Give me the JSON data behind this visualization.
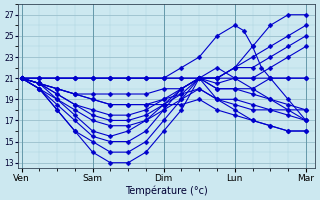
{
  "xlabel": "Température (°c)",
  "background_color": "#cce8f0",
  "line_color": "#0000cc",
  "marker": "D",
  "markersize": 2.5,
  "linewidth": 0.8,
  "ylim": [
    12.5,
    28
  ],
  "yticks": [
    13,
    15,
    17,
    19,
    21,
    23,
    25,
    27
  ],
  "days": [
    "Ven",
    "Sam",
    "Dim",
    "Lun",
    "Mar"
  ],
  "day_tick_positions": [
    0,
    4,
    8,
    12,
    16
  ],
  "trajectories": [
    {
      "x": [
        0,
        1,
        2,
        3,
        4,
        5,
        6,
        7,
        8,
        9,
        10,
        11,
        12,
        13,
        14,
        15,
        16
      ],
      "y": [
        21,
        20,
        18,
        16,
        14,
        13,
        13,
        14,
        16,
        18,
        21,
        21,
        22,
        24,
        26,
        27,
        27
      ]
    },
    {
      "x": [
        0,
        1,
        2,
        3,
        4,
        5,
        6,
        7,
        8,
        9,
        10,
        11,
        12,
        13,
        14,
        15,
        16
      ],
      "y": [
        21,
        20,
        18,
        16,
        15,
        14,
        14,
        15,
        17,
        19,
        21,
        21,
        22,
        23,
        24,
        25,
        26
      ]
    },
    {
      "x": [
        0,
        1,
        2,
        3,
        4,
        5,
        6,
        7,
        8,
        9,
        10,
        11,
        12,
        13,
        14,
        15,
        16
      ],
      "y": [
        21,
        20,
        18.5,
        17,
        15.5,
        15,
        15,
        16,
        18,
        20,
        21,
        21,
        22,
        22,
        23,
        24,
        25
      ]
    },
    {
      "x": [
        0,
        1,
        2,
        3,
        4,
        5,
        6,
        7,
        8,
        9,
        10,
        11,
        12,
        13,
        14,
        15,
        16
      ],
      "y": [
        21,
        20.5,
        19,
        17.5,
        16,
        15.5,
        16,
        17,
        18.5,
        20,
        21,
        20.5,
        21,
        21,
        22,
        23,
        24
      ]
    },
    {
      "x": [
        0,
        1,
        2,
        3,
        4,
        5,
        6,
        7,
        8,
        9,
        10,
        11,
        12,
        13,
        14,
        15,
        16
      ],
      "y": [
        21,
        20.5,
        19.5,
        18.5,
        17.5,
        17,
        17,
        17.5,
        18.5,
        19.5,
        21,
        20,
        20,
        20,
        21,
        21,
        21
      ]
    },
    {
      "x": [
        0,
        1,
        2,
        3,
        4,
        5,
        6,
        7,
        8,
        9,
        10,
        11,
        12,
        13,
        14,
        15,
        16
      ],
      "y": [
        21,
        20.5,
        19.5,
        18.5,
        18,
        17.5,
        17.5,
        18,
        19,
        20,
        21,
        20,
        20,
        19.5,
        19,
        18.5,
        18
      ]
    },
    {
      "x": [
        0,
        1,
        2,
        3,
        4,
        5,
        6,
        7,
        8,
        9,
        10,
        11,
        12,
        13,
        14,
        15,
        16
      ],
      "y": [
        21,
        20.5,
        20,
        19.5,
        19,
        18.5,
        18.5,
        18.5,
        19,
        19.5,
        20,
        19,
        19,
        18.5,
        18,
        17.5,
        17
      ]
    },
    {
      "x": [
        0,
        1,
        2,
        3,
        4,
        5,
        6,
        7,
        8,
        9,
        10,
        11,
        12,
        13,
        14,
        15,
        16
      ],
      "y": [
        21,
        20.5,
        20,
        19.5,
        19,
        18.5,
        18.5,
        18.5,
        18.5,
        18.5,
        19,
        18,
        17.5,
        17,
        16.5,
        16,
        16
      ]
    },
    {
      "x": [
        0,
        1,
        2,
        3,
        4,
        5,
        6,
        7,
        8,
        9,
        10,
        11,
        12,
        12.5,
        13,
        13.5,
        14,
        15,
        16
      ],
      "y": [
        21,
        21,
        21,
        21,
        21,
        21,
        21,
        21,
        21,
        22,
        23,
        25,
        26,
        25.5,
        24,
        22,
        21,
        19,
        17
      ]
    },
    {
      "x": [
        0,
        1,
        2,
        3,
        4,
        5,
        6,
        7,
        8,
        9,
        10,
        11,
        12,
        13,
        14,
        15,
        16
      ],
      "y": [
        21,
        21,
        21,
        21,
        21,
        21,
        21,
        21,
        21,
        21,
        21,
        19,
        18,
        17,
        16.5,
        16,
        16
      ]
    },
    {
      "x": [
        0,
        1,
        2,
        3,
        4,
        5,
        6,
        7,
        8,
        9,
        10,
        11,
        12,
        13,
        14,
        15,
        16
      ],
      "y": [
        21,
        21,
        21,
        21,
        21,
        21,
        21,
        21,
        21,
        21,
        21,
        21,
        21,
        20,
        19,
        18,
        17
      ]
    },
    {
      "x": [
        0,
        1,
        2,
        3,
        4,
        5,
        6,
        7,
        8,
        9,
        10,
        11,
        12,
        13,
        14,
        15,
        16
      ],
      "y": [
        21,
        20.5,
        20,
        19.5,
        19.5,
        19.5,
        19.5,
        19.5,
        20,
        20,
        21,
        22,
        21,
        21,
        21,
        21,
        21
      ]
    },
    {
      "x": [
        0,
        1,
        2,
        3,
        4,
        5,
        6,
        7,
        8,
        9,
        10,
        11,
        12,
        13,
        14,
        15,
        16
      ],
      "y": [
        21,
        20,
        19,
        18,
        17,
        16.5,
        16.5,
        17,
        18,
        19,
        20,
        19,
        18.5,
        18,
        18,
        18,
        18
      ]
    }
  ]
}
